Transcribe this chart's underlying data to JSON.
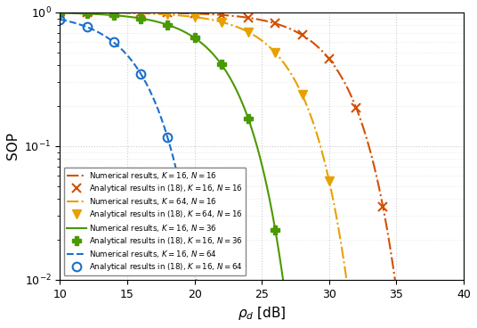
{
  "title": "",
  "xlabel": "$\\rho_d$ [dB]",
  "ylabel": "SOP",
  "xlim": [
    10,
    40
  ],
  "ylim": [
    0.01,
    1.2
  ],
  "xticks": [
    10,
    15,
    20,
    25,
    30,
    35,
    40
  ],
  "series": [
    {
      "label": "Numerical results, $K = 16$, $N = 16$",
      "color": "#d45000",
      "linestyle": "-.",
      "marker": "none",
      "K": 16,
      "N": 16,
      "line_type": "numerical",
      "a": 1.8e-05,
      "b": 1.55
    },
    {
      "label": "Analytical results in (18), $K = 16$, $N = 16$",
      "color": "#d45000",
      "linestyle": "none",
      "marker": "x",
      "K": 16,
      "N": 16,
      "line_type": "analytical",
      "a": 1.8e-05,
      "b": 1.55
    },
    {
      "label": "Numerical results, $K = 64$, $N = 16$",
      "color": "#e8a000",
      "linestyle": "-.",
      "marker": "none",
      "K": 64,
      "N": 16,
      "line_type": "numerical",
      "a": 6.5e-05,
      "b": 1.55
    },
    {
      "label": "Analytical results in (18), $K = 64$, $N = 16$",
      "color": "#e8a000",
      "linestyle": "none",
      "marker": "v",
      "K": 64,
      "N": 16,
      "line_type": "analytical",
      "a": 6.5e-05,
      "b": 1.55
    },
    {
      "label": "Numerical results, $K = 16$, $N = 36$",
      "color": "#4a9900",
      "linestyle": "-",
      "marker": "none",
      "K": 16,
      "N": 36,
      "line_type": "numerical",
      "a": 0.00035,
      "b": 1.55
    },
    {
      "label": "Analytical results in (18), $K = 16$, $N = 36$",
      "color": "#4a9900",
      "linestyle": "none",
      "marker": "+",
      "K": 16,
      "N": 36,
      "line_type": "analytical",
      "a": 0.00035,
      "b": 1.55
    },
    {
      "label": "Numerical results, $K = 16$, $N = 64$",
      "color": "#1a6fcc",
      "linestyle": "--",
      "marker": "none",
      "K": 16,
      "N": 64,
      "line_type": "numerical",
      "a": 0.0035,
      "b": 1.55
    },
    {
      "label": "Analytical results in (18), $K = 16$, $N = 64$",
      "color": "#1a6fcc",
      "linestyle": "none",
      "marker": "o",
      "K": 16,
      "N": 64,
      "line_type": "analytical",
      "a": 0.0035,
      "b": 1.55
    }
  ],
  "background_color": "#ffffff",
  "grid_color": "#cccccc"
}
